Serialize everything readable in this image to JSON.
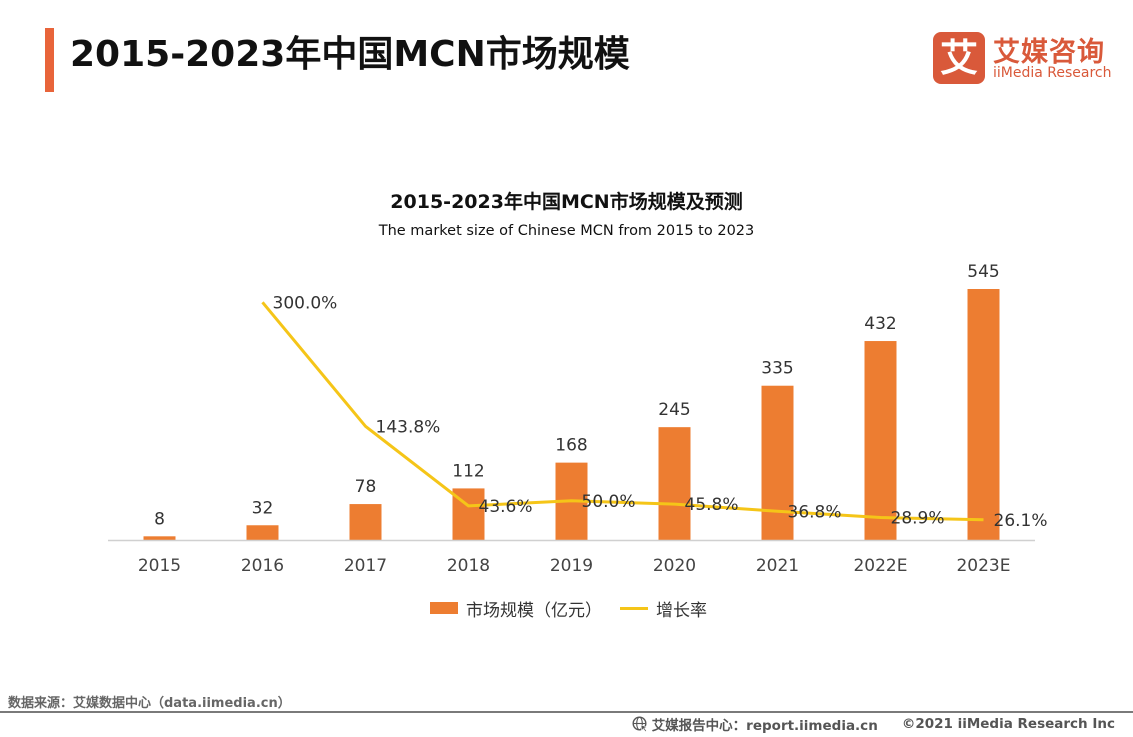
{
  "header": {
    "title": "2015-2023年中国MCN市场规模",
    "logo": {
      "mark": "艾",
      "name_cn": "艾媒咨询",
      "name_en": "iiMedia Research"
    }
  },
  "colors": {
    "accent": "#e8643a",
    "bar": "#ed7d31",
    "line": "#f5c518",
    "logo": "#d9593a",
    "axis": "#d0d0d0"
  },
  "chart_data": {
    "type": "bar",
    "title": "2015-2023年中国MCN市场规模及预测",
    "subtitle": "The  market size of Chinese MCN from 2015 to 2023",
    "categories": [
      "2015",
      "2016",
      "2017",
      "2018",
      "2019",
      "2020",
      "2021",
      "2022E",
      "2023E"
    ],
    "series": [
      {
        "name": "市场规模（亿元）",
        "type": "bar",
        "axis": "left",
        "values": [
          8,
          32,
          78,
          112,
          168,
          245,
          335,
          432,
          545
        ],
        "labels": [
          "8",
          "32",
          "78",
          "112",
          "168",
          "245",
          "335",
          "432",
          "545"
        ]
      },
      {
        "name": "增长率",
        "type": "line",
        "axis": "right",
        "unit": "%",
        "values": [
          null,
          300.0,
          143.8,
          43.6,
          50.0,
          45.8,
          36.8,
          28.9,
          26.1
        ],
        "labels": [
          "",
          "300.0%",
          "143.8%",
          "43.6%",
          "50.0%",
          "45.8%",
          "36.8%",
          "28.9%",
          "26.1%"
        ]
      }
    ],
    "xlabel": "",
    "ylabel": "",
    "y_axis_visible": false,
    "grid": false,
    "legend_position": "bottom-center"
  },
  "legend": {
    "bar_label": "市场规模（亿元）",
    "line_label": "增长率"
  },
  "footer": {
    "source": "数据来源：艾媒数据中心（data.iimedia.cn）",
    "report_center": "艾媒报告中心：report.iimedia.cn",
    "copyright": "©2021  iiMedia Research  Inc"
  }
}
